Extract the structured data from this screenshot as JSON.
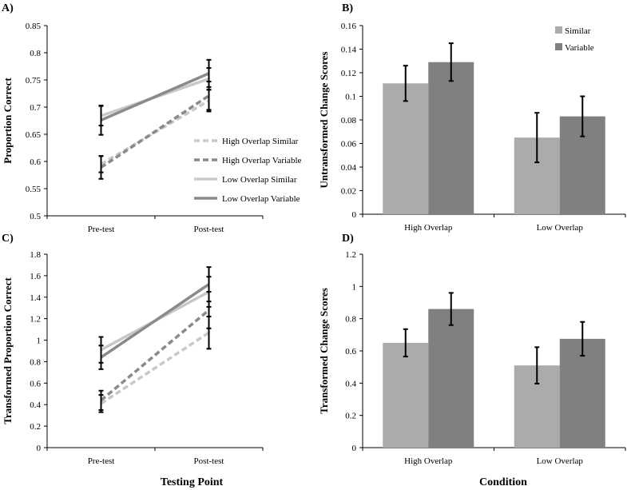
{
  "x_labels": {
    "left": "Testing Point",
    "right": "Condition"
  },
  "chart_data": [
    {
      "panel": "A)",
      "type": "line",
      "ylabel": "Proportion Correct",
      "ylim": [
        0.5,
        0.85
      ],
      "ytick_step": 0.05,
      "categories": [
        "Pre-test",
        "Post-test"
      ],
      "series": [
        {
          "name": "High Overlap Similar",
          "color": "#c8c8c8",
          "dashed": true,
          "values": [
            0.595,
            0.712
          ],
          "errors": [
            0.015,
            0.02
          ]
        },
        {
          "name": "High Overlap Variable",
          "color": "#8a8a8a",
          "dashed": true,
          "values": [
            0.589,
            0.721
          ],
          "errors": [
            0.021,
            0.026
          ]
        },
        {
          "name": "Low Overlap Similar",
          "color": "#c8c8c8",
          "dashed": false,
          "values": [
            0.684,
            0.752
          ],
          "errors": [
            0.018,
            0.02
          ]
        },
        {
          "name": "Low Overlap Variable",
          "color": "#8a8a8a",
          "dashed": false,
          "values": [
            0.676,
            0.762
          ],
          "errors": [
            0.027,
            0.025
          ]
        }
      ]
    },
    {
      "panel": "B)",
      "type": "bar",
      "ylabel": "Untransformed Change Scores",
      "ylim": [
        0,
        0.16
      ],
      "ytick_step": 0.02,
      "categories": [
        "High Overlap",
        "Low Overlap"
      ],
      "series": [
        {
          "name": "Similar",
          "color": "#ababab",
          "values": [
            0.111,
            0.065
          ],
          "errors": [
            0.015,
            0.021
          ]
        },
        {
          "name": "Variable",
          "color": "#808080",
          "values": [
            0.129,
            0.083
          ],
          "errors": [
            0.016,
            0.017
          ]
        }
      ]
    },
    {
      "panel": "C)",
      "type": "line",
      "ylabel": "Transformed Proportion Correct",
      "ylim": [
        0,
        1.8
      ],
      "ytick_step": 0.2,
      "categories": [
        "Pre-test",
        "Post-test"
      ],
      "series": [
        {
          "name": "High Overlap Similar",
          "color": "#c8c8c8",
          "dashed": true,
          "values": [
            0.41,
            1.07
          ],
          "errors": [
            0.08,
            0.15
          ]
        },
        {
          "name": "High Overlap Variable",
          "color": "#8a8a8a",
          "dashed": true,
          "values": [
            0.44,
            1.28
          ],
          "errors": [
            0.09,
            0.17
          ]
        },
        {
          "name": "Low Overlap Similar",
          "color": "#c8c8c8",
          "dashed": false,
          "values": [
            0.91,
            1.45
          ],
          "errors": [
            0.12,
            0.14
          ]
        },
        {
          "name": "Low Overlap Variable",
          "color": "#8a8a8a",
          "dashed": false,
          "values": [
            0.84,
            1.52
          ],
          "errors": [
            0.11,
            0.16
          ]
        }
      ]
    },
    {
      "panel": "D)",
      "type": "bar",
      "ylabel": "Transformed Change Scores",
      "ylim": [
        0,
        1.2
      ],
      "ytick_step": 0.2,
      "categories": [
        "High Overlap",
        "Low Overlap"
      ],
      "series": [
        {
          "name": "Similar",
          "color": "#ababab",
          "values": [
            0.65,
            0.51
          ],
          "errors": [
            0.085,
            0.113
          ]
        },
        {
          "name": "Variable",
          "color": "#808080",
          "values": [
            0.86,
            0.675
          ],
          "errors": [
            0.1,
            0.105
          ]
        }
      ]
    }
  ]
}
